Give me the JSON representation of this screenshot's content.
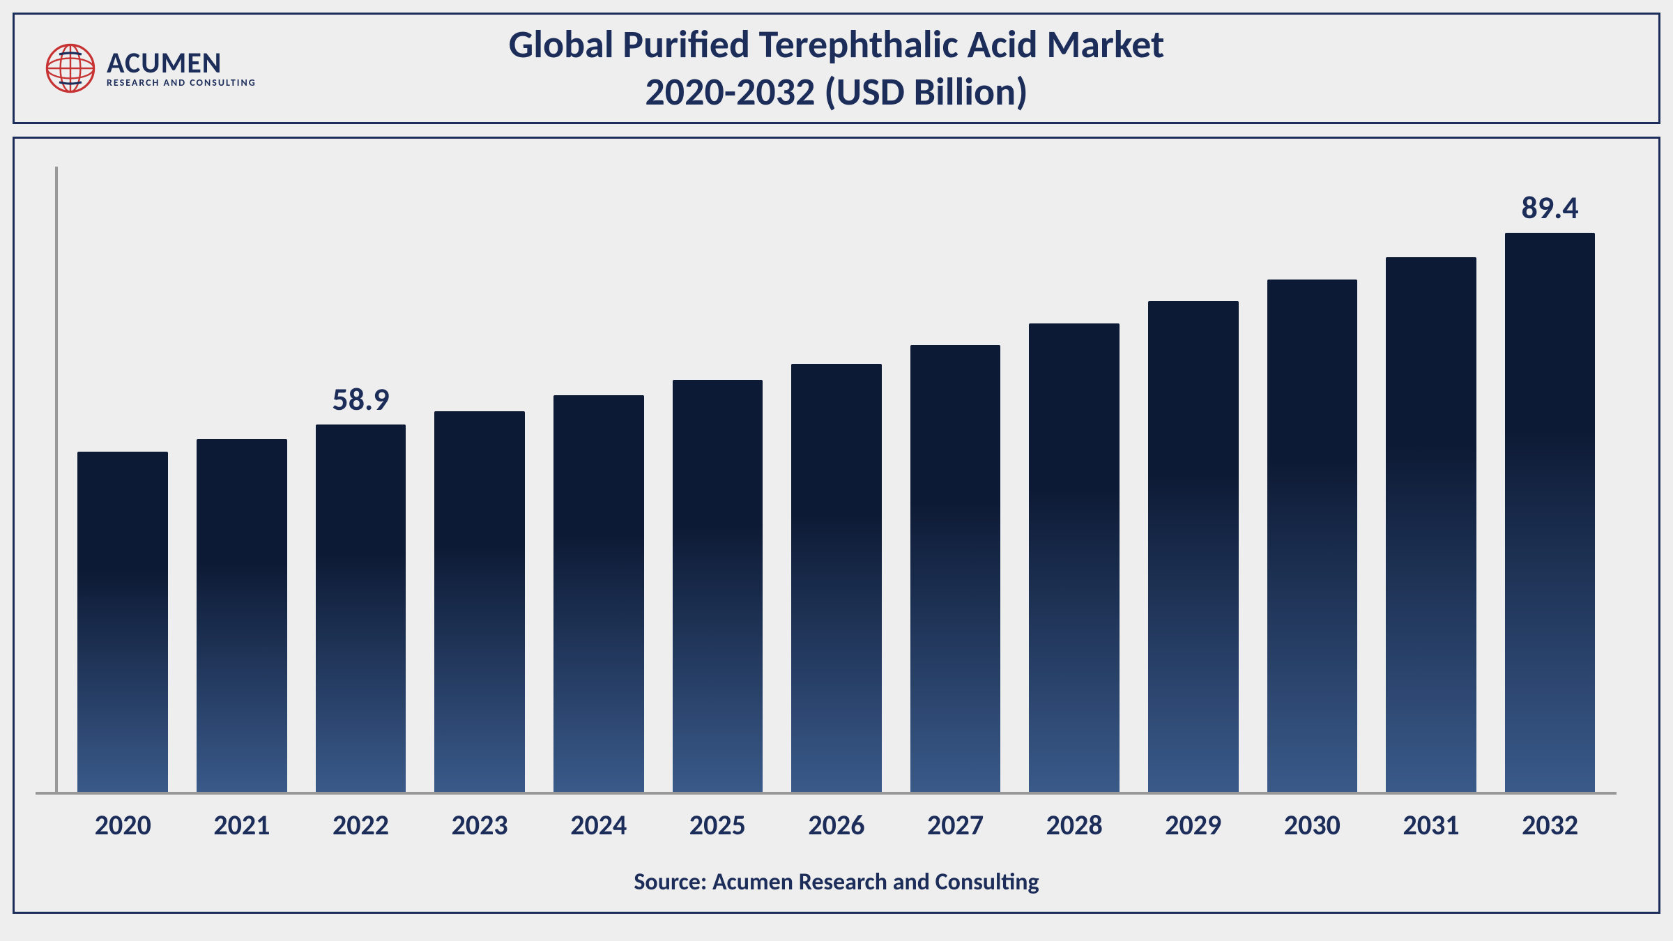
{
  "logo": {
    "main": "ACUMEN",
    "sub": "RESEARCH AND CONSULTING",
    "globe_stroke": "#c73232",
    "main_color": "#1c2d5a"
  },
  "title": {
    "line1": "Global Purified Terephthalic Acid Market",
    "line2": "2020-2032 (USD Billion)",
    "color": "#1c2d5a",
    "fontsize": 56
  },
  "chart": {
    "type": "bar",
    "categories": [
      "2020",
      "2021",
      "2022",
      "2023",
      "2024",
      "2025",
      "2026",
      "2027",
      "2028",
      "2029",
      "2030",
      "2031",
      "2032"
    ],
    "values": [
      54.5,
      56.5,
      58.9,
      61.0,
      63.5,
      66.0,
      68.5,
      71.5,
      75.0,
      78.5,
      82.0,
      85.5,
      89.4
    ],
    "labeled_indices": {
      "2": "58.9",
      "12": "89.4"
    },
    "ylim_max": 100,
    "bar_gradient_top": "#0d1a35",
    "bar_gradient_bottom": "#3a5a8a",
    "bar_width_pct": 76,
    "axis_color": "#999999",
    "xlabel_color": "#1c2d5a",
    "xlabel_fontsize": 40,
    "datalabel_color": "#1c2d5a",
    "datalabel_fontsize": 46,
    "background_color": "#eeeeee",
    "border_color": "#1c2d5a"
  },
  "source": "Source: Acumen Research and Consulting"
}
